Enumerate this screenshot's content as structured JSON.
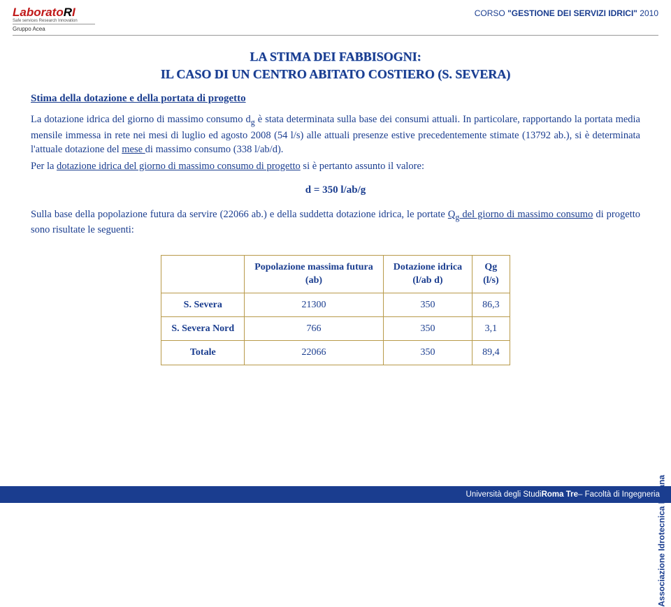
{
  "header": {
    "logo_main_1": "Laborato",
    "logo_main_2": "R",
    "logo_main_3": "I",
    "logo_sub": "Safe services Research Innovation",
    "logo_group": "Gruppo Acea",
    "course_prefix": "CORSO ",
    "course_name": "\"GESTIONE DEI SERVIZI IDRICI\"",
    "course_year": " 2010"
  },
  "title_line1": "LA STIMA DEI FABBISOGNI:",
  "title_line2": "IL CASO DI UN CENTRO ABITATO COSTIERO (S. SEVERA)",
  "subheading": "Stima della dotazione e della portata di progetto",
  "para1a": "La dotazione idrica del giorno di massimo consumo d",
  "para1b": " è stata determinata sulla base dei consumi attuali. In particolare, rapportando la portata media mensile immessa in rete nei mesi di luglio ed agosto 2008 (54 l/s) alle attuali presenze estive precedentemente stimate (13792 ab.), si è determinata l'attuale dotazione del ",
  "para1_u1": "mese ",
  "para1c": "di massimo consumo (338 l/ab/d).",
  "para2a": "Per la ",
  "para2_u": "dotazione idrica del giorno di massimo consumo di progetto",
  "para2b": " si è pertanto assunto il valore:",
  "formula": "d = 350 l/ab/g",
  "para3a": "Sulla base della popolazione futura da servire (22066 ab.) e della suddetta dotazione idrica, le portate ",
  "para3_u": "Q",
  "para3_u2": " del giorno di massimo consumo",
  "para3b": " di progetto sono risultate le seguenti:",
  "table": {
    "headers": {
      "c1": "",
      "c2_l1": "Popolazione massima futura",
      "c2_l2": "(ab)",
      "c3_l1": "Dotazione idrica",
      "c3_l2": "(l/ab d)",
      "c4_l1": "Qg",
      "c4_l2": "(l/s)"
    },
    "rows": [
      {
        "label": "S. Severa",
        "pop": "21300",
        "dot": "350",
        "q": "86,3"
      },
      {
        "label": "S. Severa Nord",
        "pop": "766",
        "dot": "350",
        "q": "3,1"
      },
      {
        "label": "Totale",
        "pop": "22066",
        "dot": "350",
        "q": "89,4"
      }
    ]
  },
  "side": "Associazione Idrotecnica Italiana",
  "footer": {
    "uni_prefix": "Università degli Studi ",
    "uni_bold": "Roma Tre",
    "uni_suffix": " – Facoltà di Ingegneria"
  },
  "colors": {
    "brand_blue": "#1a3d8f",
    "table_border": "#b89a4a",
    "logo_red": "#c01818"
  }
}
